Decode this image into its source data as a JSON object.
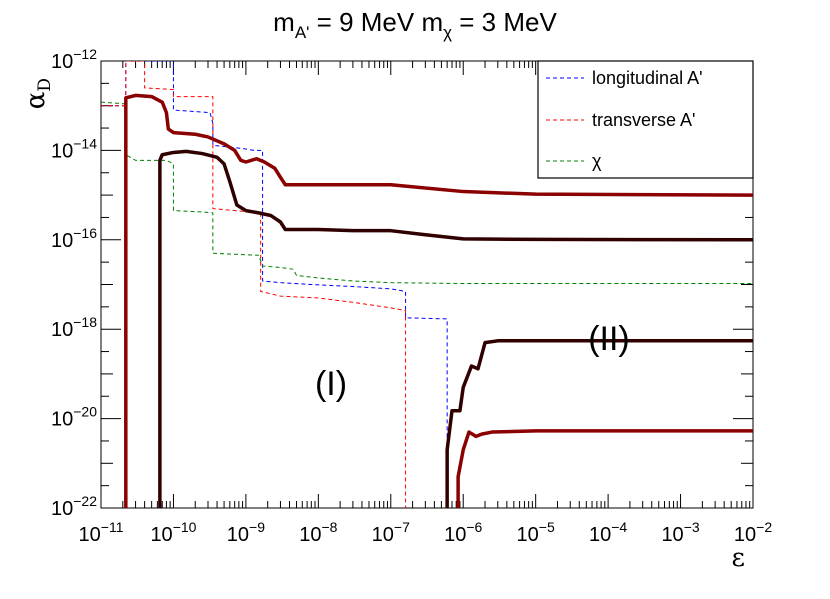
{
  "chart_data": {
    "type": "line",
    "title": {
      "m_label": "m",
      "a_sub": "A'",
      "a_eq": " = 9 MeV ",
      "chi_sub": "χ",
      "chi_eq": " = 3 MeV"
    },
    "xlabel": "ε",
    "ylabel": {
      "base": "α",
      "sub": "D"
    },
    "x_scale": "log",
    "y_scale": "log",
    "xlim": [
      1e-11,
      0.01
    ],
    "ylim": [
      1e-22,
      1e-12
    ],
    "x_tick_exponents": [
      -11,
      -10,
      -9,
      -8,
      -7,
      -6,
      -5,
      -4,
      -3,
      -2
    ],
    "y_tick_exponents": [
      -22,
      -20,
      -18,
      -16,
      -14,
      -12
    ],
    "tick_base": "10",
    "legend_position": "top-right",
    "legend": [
      {
        "label": "longitudinal A'",
        "color": "#0000ff",
        "style": "dashed"
      },
      {
        "label": "transverse A'",
        "color": "#ff0000",
        "style": "dashed"
      },
      {
        "label": "χ",
        "color": "#008000",
        "style": "dashed"
      }
    ],
    "annotations": [
      {
        "text": "(I)",
        "x": 2.5e-08,
        "y": 1.5e-20
      },
      {
        "text": "(II)",
        "x": 2.5e-05,
        "y": 2e-19
      }
    ],
    "series": [
      {
        "key": "longitudinal",
        "color": "#0000ff",
        "style": "dashed",
        "width": 1,
        "points": [
          [
            1e-11,
            1e-13
          ],
          [
            2.2e-11,
            1e-13
          ],
          [
            2.2e-11,
            1e-22
          ],
          [
            2.2e-11,
            1e-12
          ],
          [
            1e-10,
            1e-12
          ],
          [
            1e-10,
            8e-14
          ],
          [
            3.2e-10,
            7e-14
          ],
          [
            3.5e-10,
            4e-14
          ],
          [
            3.5e-10,
            1.3e-14
          ],
          [
            9e-10,
            1.1e-14
          ],
          [
            1.3e-09,
            1e-14
          ],
          [
            1.7e-09,
            1e-14
          ],
          [
            1.7e-09,
            1.2e-17
          ],
          [
            3e-09,
            1.1e-17
          ],
          [
            8e-09,
            1e-17
          ],
          [
            3e-08,
            9e-18
          ],
          [
            1e-07,
            8e-18
          ],
          [
            1.6e-07,
            7e-18
          ],
          [
            1.6e-07,
            1.8e-18
          ],
          [
            6e-07,
            1.7e-18
          ],
          [
            6e-07,
            1e-22
          ]
        ]
      },
      {
        "key": "transverse",
        "color": "#ff0000",
        "style": "dashed",
        "width": 1,
        "points": [
          [
            1e-11,
            1e-13
          ],
          [
            2.2e-11,
            1e-13
          ],
          [
            2.2e-11,
            1e-22
          ],
          [
            2.2e-11,
            1e-12
          ],
          [
            4e-11,
            1e-12
          ],
          [
            4e-11,
            2.5e-13
          ],
          [
            1e-10,
            2.3e-13
          ],
          [
            1e-10,
            1.6e-13
          ],
          [
            3.5e-10,
            1.6e-13
          ],
          [
            3.5e-10,
            5e-16
          ],
          [
            1.6e-09,
            4e-16
          ],
          [
            1.6e-09,
            7e-18
          ],
          [
            3e-09,
            5.5e-18
          ],
          [
            1e-08,
            5e-18
          ],
          [
            3e-08,
            4e-18
          ],
          [
            1e-07,
            3e-18
          ],
          [
            1.6e-07,
            2.6e-18
          ],
          [
            1.6e-07,
            1e-22
          ]
        ]
      },
      {
        "key": "chi",
        "color": "#008000",
        "style": "dashed",
        "width": 1,
        "points": [
          [
            1e-11,
            1.2e-13
          ],
          [
            2.2e-11,
            1.1e-13
          ],
          [
            2.2e-11,
            1e-22
          ],
          [
            2.2e-11,
            8e-15
          ],
          [
            3e-11,
            6e-15
          ],
          [
            8e-11,
            6e-15
          ],
          [
            1e-10,
            5e-15
          ],
          [
            1e-10,
            4.5e-16
          ],
          [
            2.5e-10,
            4.2e-16
          ],
          [
            3.5e-10,
            4e-16
          ],
          [
            3.5e-10,
            5e-17
          ],
          [
            1.5e-09,
            4.5e-17
          ],
          [
            1.7e-09,
            2.6e-17
          ],
          [
            3e-09,
            2.4e-17
          ],
          [
            4.5e-09,
            2.2e-17
          ],
          [
            5e-09,
            1.6e-17
          ],
          [
            1e-08,
            1.4e-17
          ],
          [
            3e-08,
            1.2e-17
          ],
          [
            1e-07,
            1.1e-17
          ],
          [
            1e-06,
            1.05e-17
          ],
          [
            0.01,
            1.05e-17
          ]
        ]
      },
      {
        "key": "bound-I-a",
        "color": "#8b0000",
        "style": "solid",
        "width": 3.5,
        "points": [
          [
            2.2e-11,
            1e-22
          ],
          [
            2.2e-11,
            1.5e-13
          ],
          [
            3e-11,
            1.7e-13
          ],
          [
            5e-11,
            1.6e-13
          ],
          [
            7e-11,
            1.2e-13
          ],
          [
            8e-11,
            7e-14
          ],
          [
            8.5e-11,
            3e-14
          ],
          [
            1e-10,
            2.5e-14
          ],
          [
            2e-10,
            2.3e-14
          ],
          [
            3e-10,
            2e-14
          ],
          [
            5e-10,
            1.4e-14
          ],
          [
            7e-10,
            1e-14
          ],
          [
            8.5e-10,
            6e-15
          ],
          [
            1e-09,
            5.5e-15
          ],
          [
            1.4e-09,
            6.5e-15
          ],
          [
            1.8e-09,
            5.5e-15
          ],
          [
            2.5e-09,
            4e-15
          ],
          [
            3e-09,
            2.5e-15
          ],
          [
            3.5e-09,
            1.7e-15
          ],
          [
            1e-08,
            1.7e-15
          ],
          [
            1e-07,
            1.7e-15
          ],
          [
            1e-06,
            1.2e-15
          ],
          [
            1e-05,
            1.05e-15
          ],
          [
            0.01,
            1e-15
          ]
        ]
      },
      {
        "key": "bound-I-b",
        "color": "#300000",
        "style": "solid",
        "width": 3.5,
        "points": [
          [
            6.5e-11,
            1e-22
          ],
          [
            6.5e-11,
            6e-15
          ],
          [
            7e-11,
            8e-15
          ],
          [
            1e-10,
            9e-15
          ],
          [
            1.5e-10,
            9.5e-15
          ],
          [
            2.5e-10,
            8.5e-15
          ],
          [
            4e-10,
            7e-15
          ],
          [
            5e-10,
            5e-15
          ],
          [
            6e-10,
            2e-15
          ],
          [
            7.5e-10,
            6e-16
          ],
          [
            1e-09,
            4.5e-16
          ],
          [
            1.5e-09,
            4e-16
          ],
          [
            2.2e-09,
            3.5e-16
          ],
          [
            3e-09,
            2.5e-16
          ],
          [
            3.5e-09,
            1.7e-16
          ],
          [
            1e-08,
            1.7e-16
          ],
          [
            3e-08,
            1.6e-16
          ],
          [
            1e-07,
            1.6e-16
          ],
          [
            3e-07,
            1.3e-16
          ],
          [
            1e-06,
            1.05e-16
          ],
          [
            1e-05,
            1.02e-16
          ],
          [
            0.01,
            1e-16
          ]
        ]
      },
      {
        "key": "bound-II-b",
        "color": "#300000",
        "style": "solid",
        "width": 3.5,
        "points": [
          [
            6e-07,
            1e-22
          ],
          [
            6e-07,
            2e-21
          ],
          [
            7e-07,
            1.5e-20
          ],
          [
            9e-07,
            1.5e-20
          ],
          [
            1e-06,
            5e-20
          ],
          [
            1.3e-06,
            1.5e-19
          ],
          [
            1.6e-06,
            1.3e-19
          ],
          [
            2e-06,
            5e-19
          ],
          [
            3e-06,
            5.5e-19
          ],
          [
            1e-05,
            5.5e-19
          ],
          [
            0.01,
            5.5e-19
          ]
        ]
      },
      {
        "key": "bound-II-a",
        "color": "#8b0000",
        "style": "solid",
        "width": 3.5,
        "points": [
          [
            8.5e-07,
            1e-22
          ],
          [
            8.5e-07,
            5e-22
          ],
          [
            1e-06,
            2e-21
          ],
          [
            1.2e-06,
            5e-21
          ],
          [
            1.5e-06,
            4e-21
          ],
          [
            1.8e-06,
            4.5e-21
          ],
          [
            2.5e-06,
            5e-21
          ],
          [
            1e-05,
            5.3e-21
          ],
          [
            0.01,
            5.3e-21
          ]
        ]
      }
    ]
  }
}
